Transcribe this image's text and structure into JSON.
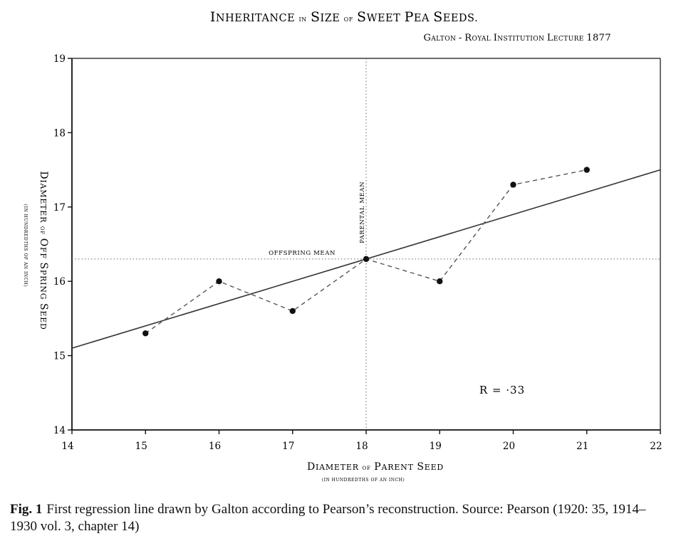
{
  "chart_data": {
    "type": "scatter",
    "title": "Inheritance in Size of Sweet Pea Seeds.",
    "title_parts": [
      {
        "cap": "I",
        "rest": "NHERITANCE",
        "kind": "word"
      },
      {
        "cap": "",
        "rest": "IN",
        "kind": "small"
      },
      {
        "cap": "S",
        "rest": "IZE",
        "kind": "word"
      },
      {
        "cap": "",
        "rest": "OF",
        "kind": "small"
      },
      {
        "cap": "S",
        "rest": "WEET",
        "kind": "word"
      },
      {
        "cap": "P",
        "rest": "EA",
        "kind": "word"
      },
      {
        "cap": "S",
        "rest": "EEDS.",
        "kind": "word"
      }
    ],
    "subtitle": "Galton - Royal Institution Lecture 1877",
    "subtitle_parts": [
      {
        "cap": "G",
        "rest": "ALTON"
      },
      {
        "cap": "-",
        "rest": ""
      },
      {
        "cap": "R",
        "rest": "OYAL"
      },
      {
        "cap": "I",
        "rest": "NSTITUTION"
      },
      {
        "cap": "L",
        "rest": "ECTURE"
      },
      {
        "cap": "1877",
        "rest": ""
      }
    ],
    "xlabel": "Diameter of Parent Seed",
    "xlabel_note": "(In Hundredths of an Inch)",
    "ylabel": "Diameter of Off Spring Seed",
    "ylabel_note": "(In Hundredths of an Inch)",
    "xlim": [
      14,
      22
    ],
    "ylim": [
      14,
      19
    ],
    "x_ticks": [
      14,
      15,
      16,
      17,
      18,
      19,
      20,
      21,
      22
    ],
    "y_ticks": [
      14,
      15,
      16,
      17,
      18,
      19
    ],
    "x_tick_labels": [
      "14",
      "15",
      "16",
      "17",
      "18",
      "19",
      "20",
      "21",
      "22"
    ],
    "y_tick_labels": [
      "14",
      "15",
      "16",
      "17",
      "18",
      "19"
    ],
    "points": {
      "x": [
        15,
        16,
        17,
        18,
        19,
        20,
        21
      ],
      "y": [
        15.3,
        16.0,
        15.6,
        16.3,
        16.0,
        17.3,
        17.5
      ]
    },
    "regression_line": {
      "x": [
        14,
        22
      ],
      "y": [
        15.1,
        17.5
      ]
    },
    "parental_mean": {
      "x": 18,
      "label": "Parental Mean"
    },
    "offspring_mean": {
      "y": 16.3,
      "label": "Offspring Mean"
    },
    "annotation": "R = ·33"
  },
  "caption": {
    "label": "Fig. 1",
    "text": "First regression line drawn by Galton according to Pearson’s reconstruction. Source: Pearson (1920: 35, 1914–1930 vol. 3, chapter 14)"
  },
  "colors": {
    "ink": "#111111",
    "line": "#333333",
    "dashed": "#555555",
    "dotted": "#666666"
  }
}
